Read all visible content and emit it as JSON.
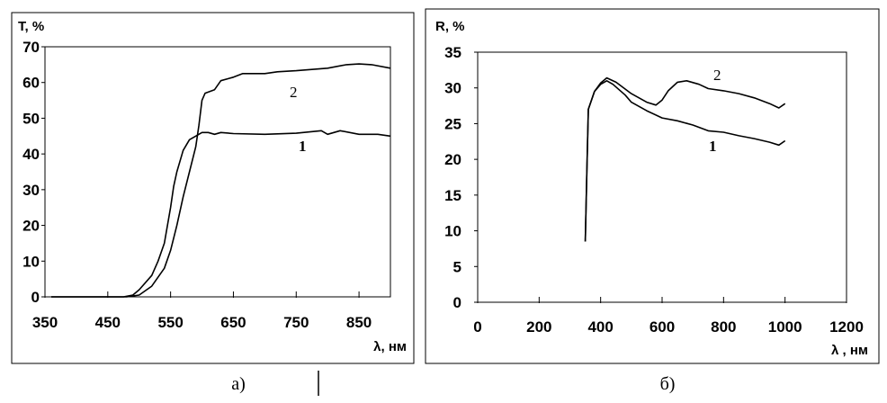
{
  "chart_data": [
    {
      "type": "line",
      "caption": "а)",
      "ylabel": "T, %",
      "xlabel": "λ, нм",
      "xlim": [
        350,
        900
      ],
      "ylim": [
        0,
        70
      ],
      "xticks": [
        350,
        450,
        550,
        650,
        750,
        850
      ],
      "yticks": [
        0,
        10,
        20,
        30,
        40,
        50,
        60,
        70
      ],
      "grid": false,
      "series": [
        {
          "name": "1",
          "x": [
            360,
            450,
            475,
            490,
            500,
            520,
            530,
            540,
            550,
            555,
            560,
            570,
            580,
            590,
            600,
            610,
            620,
            630,
            650,
            700,
            750,
            790,
            800,
            820,
            850,
            880,
            900
          ],
          "y": [
            0,
            0,
            0,
            0.5,
            2,
            6,
            10,
            15,
            25,
            31,
            35,
            41,
            44,
            45,
            46,
            46,
            45.5,
            46,
            45.7,
            45.5,
            45.8,
            46.5,
            45.5,
            46.5,
            45.5,
            45.5,
            45
          ]
        },
        {
          "name": "2",
          "x": [
            360,
            480,
            500,
            520,
            540,
            550,
            560,
            570,
            580,
            590,
            595,
            600,
            605,
            620,
            630,
            650,
            665,
            700,
            720,
            750,
            800,
            830,
            850,
            870,
            900
          ],
          "y": [
            0,
            0,
            0.5,
            3,
            8,
            13,
            20,
            28,
            35,
            42,
            48,
            55,
            57,
            58,
            60.5,
            61.5,
            62.5,
            62.5,
            63,
            63.3,
            64,
            65,
            65.2,
            65,
            64
          ]
        }
      ]
    },
    {
      "type": "line",
      "caption": "б)",
      "ylabel": "R, %",
      "xlabel": "λ , нм",
      "xlim": [
        0,
        1200
      ],
      "ylim": [
        0,
        35
      ],
      "xticks": [
        0,
        200,
        400,
        600,
        800,
        1000,
        1200
      ],
      "yticks": [
        0,
        5,
        10,
        15,
        20,
        25,
        30,
        35
      ],
      "grid": false,
      "series": [
        {
          "name": "1",
          "x": [
            350,
            355,
            360,
            380,
            400,
            420,
            440,
            480,
            500,
            550,
            600,
            650,
            700,
            750,
            800,
            850,
            900,
            950,
            980,
            1000
          ],
          "y": [
            8.5,
            18,
            27,
            29.5,
            30.5,
            31,
            30.5,
            29,
            28,
            26.8,
            25.8,
            25.4,
            24.8,
            24,
            23.8,
            23.3,
            22.9,
            22.4,
            22,
            22.6
          ]
        },
        {
          "name": "2",
          "x": [
            350,
            355,
            360,
            380,
            400,
            420,
            450,
            500,
            550,
            580,
            600,
            620,
            650,
            680,
            720,
            750,
            800,
            850,
            900,
            950,
            980,
            1000
          ],
          "y": [
            8.5,
            18,
            27,
            29.5,
            30.7,
            31.4,
            30.8,
            29.2,
            28,
            27.6,
            28.3,
            29.6,
            30.8,
            31,
            30.5,
            29.9,
            29.6,
            29.2,
            28.6,
            27.8,
            27.2,
            27.8
          ]
        }
      ]
    }
  ]
}
